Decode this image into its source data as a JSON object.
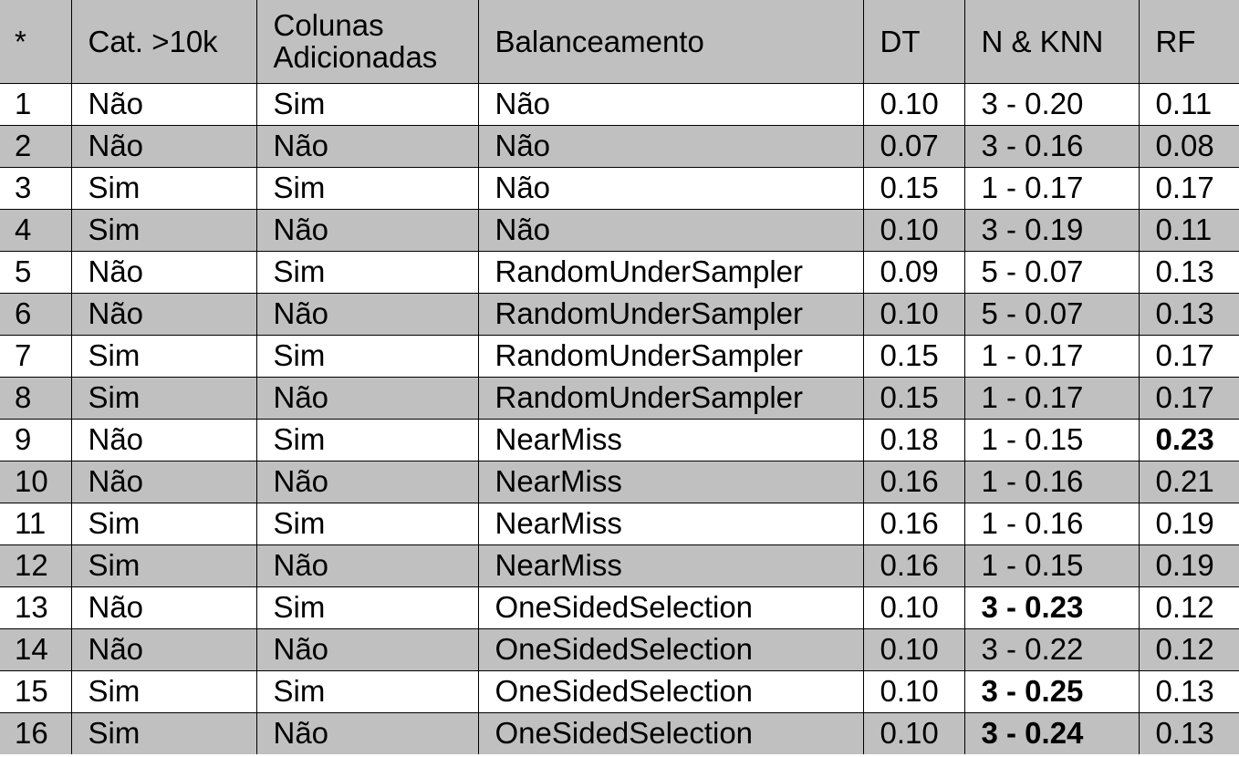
{
  "table": {
    "headers": [
      "*",
      "Cat. >10k",
      "Colunas Adicionadas",
      "Balanceamento",
      "DT",
      "N & KNN",
      "RF"
    ],
    "rows": [
      [
        "1",
        "Não",
        "Sim",
        "Não",
        "0.10",
        "3 - 0.20",
        "0.11"
      ],
      [
        "2",
        "Não",
        "Não",
        "Não",
        "0.07",
        "3 - 0.16",
        "0.08"
      ],
      [
        "3",
        "Sim",
        "Sim",
        "Não",
        "0.15",
        "1 - 0.17",
        "0.17"
      ],
      [
        "4",
        "Sim",
        "Não",
        "Não",
        "0.10",
        "3 - 0.19",
        "0.11"
      ],
      [
        "5",
        "Não",
        "Sim",
        "RandomUnderSampler",
        "0.09",
        "5 - 0.07",
        "0.13"
      ],
      [
        "6",
        "Não",
        "Não",
        "RandomUnderSampler",
        "0.10",
        "5 - 0.07",
        "0.13"
      ],
      [
        "7",
        "Sim",
        "Sim",
        "RandomUnderSampler",
        "0.15",
        "1 - 0.17",
        "0.17"
      ],
      [
        "8",
        "Sim",
        "Não",
        "RandomUnderSampler",
        "0.15",
        "1 - 0.17",
        "0.17"
      ],
      [
        "9",
        "Não",
        "Sim",
        "NearMiss",
        "0.18",
        "1 - 0.15",
        "0.23"
      ],
      [
        "10",
        "Não",
        "Não",
        "NearMiss",
        "0.16",
        "1 - 0.16",
        "0.21"
      ],
      [
        "11",
        "Sim",
        "Sim",
        "NearMiss",
        "0.16",
        "1 - 0.16",
        "0.19"
      ],
      [
        "12",
        "Sim",
        "Não",
        "NearMiss",
        "0.16",
        "1 - 0.15",
        "0.19"
      ],
      [
        "13",
        "Não",
        "Sim",
        "OneSidedSelection",
        "0.10",
        "3 - 0.23",
        "0.12"
      ],
      [
        "14",
        "Não",
        "Não",
        "OneSidedSelection",
        "0.10",
        "3 - 0.22",
        "0.12"
      ],
      [
        "15",
        "Sim",
        "Sim",
        "OneSidedSelection",
        "0.10",
        "3 - 0.25",
        "0.13"
      ],
      [
        "16",
        "Sim",
        "Não",
        "OneSidedSelection",
        "0.10",
        "3 - 0.24",
        "0.13"
      ]
    ],
    "bold_cells": [
      [
        8,
        6
      ],
      [
        12,
        5
      ],
      [
        14,
        5
      ],
      [
        15,
        5
      ]
    ],
    "colors": {
      "header_background": "#c0c0c0",
      "stripe_background": "#c0c0c0",
      "row_background": "#ffffff",
      "border": "#000000",
      "text": "#000000"
    }
  }
}
